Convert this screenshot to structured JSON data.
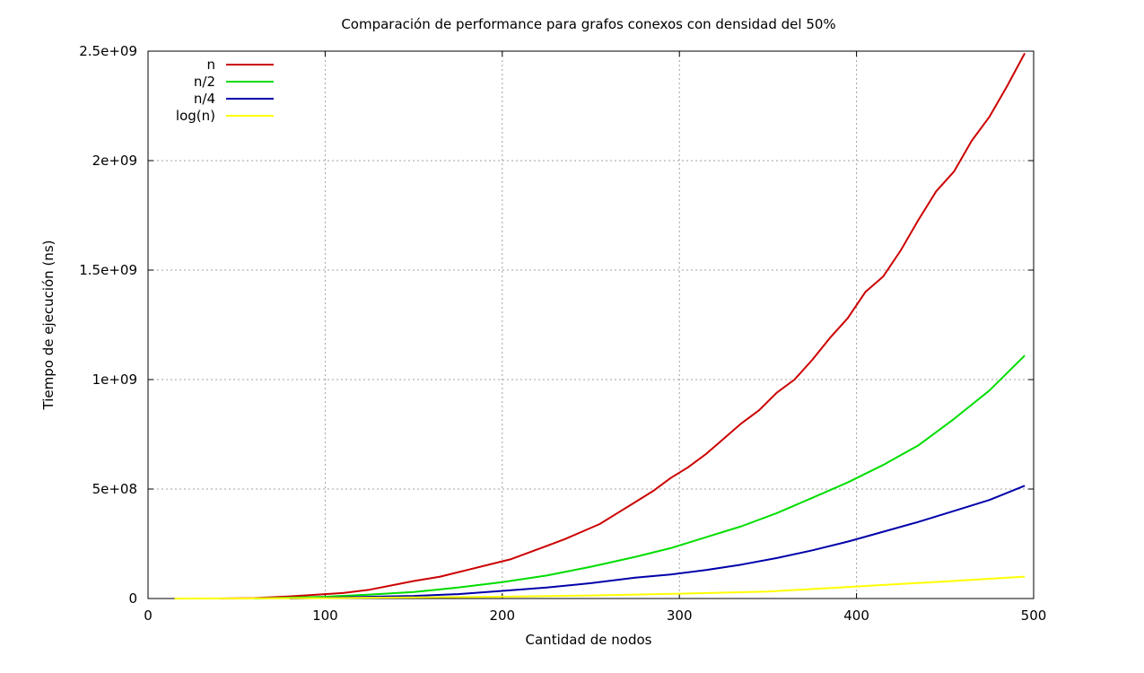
{
  "chart_data": {
    "type": "line",
    "title": "Comparación de performance para grafos conexos con densidad del 50%",
    "xlabel": "Cantidad de nodos",
    "ylabel": "Tiempo de ejecución (ns)",
    "xlim": [
      0,
      500
    ],
    "ylim": [
      0,
      2500000000
    ],
    "grid": true,
    "legend_position": "top-left",
    "x_ticks": [
      {
        "value": 0,
        "label": "0"
      },
      {
        "value": 100,
        "label": "100"
      },
      {
        "value": 200,
        "label": "200"
      },
      {
        "value": 300,
        "label": "300"
      },
      {
        "value": 400,
        "label": "400"
      },
      {
        "value": 500,
        "label": "500"
      }
    ],
    "y_ticks": [
      {
        "value": 0,
        "label": "0"
      },
      {
        "value": 500000000,
        "label": "5e+08"
      },
      {
        "value": 1000000000,
        "label": "1e+09"
      },
      {
        "value": 1500000000,
        "label": "1.5e+09"
      },
      {
        "value": 2000000000,
        "label": "2e+09"
      },
      {
        "value": 2500000000,
        "label": "2.5e+09"
      }
    ],
    "series": [
      {
        "name": "n",
        "color": "#cc0000",
        "x": [
          40,
          60,
          80,
          100,
          110,
          125,
          150,
          165,
          180,
          195,
          205,
          225,
          235,
          255,
          265,
          275,
          285,
          295,
          305,
          315,
          325,
          335,
          345,
          355,
          365,
          375,
          385,
          395,
          405,
          415,
          425,
          435,
          445,
          455,
          465,
          475,
          485,
          495
        ],
        "y": [
          0,
          2000000,
          10000000,
          20000000,
          25000000,
          40000000,
          80000000,
          100000000,
          130000000,
          160000000,
          180000000,
          240000000,
          270000000,
          340000000,
          390000000,
          440000000,
          490000000,
          550000000,
          600000000,
          660000000,
          730000000,
          800000000,
          860000000,
          940000000,
          1000000000,
          1090000000,
          1190000000,
          1280000000,
          1400000000,
          1470000000,
          1590000000,
          1730000000,
          1860000000,
          1950000000,
          2090000000,
          2200000000,
          2340000000,
          2490000000
        ]
      },
      {
        "name": "n/2",
        "color": "#00dd00",
        "x": [
          60,
          100,
          125,
          150,
          175,
          200,
          225,
          250,
          275,
          295,
          315,
          335,
          355,
          375,
          395,
          415,
          435,
          455,
          475,
          495
        ],
        "y": [
          0,
          8000000,
          18000000,
          30000000,
          50000000,
          75000000,
          105000000,
          145000000,
          190000000,
          230000000,
          280000000,
          330000000,
          390000000,
          460000000,
          530000000,
          610000000,
          700000000,
          820000000,
          950000000,
          1110000000
        ]
      },
      {
        "name": "n/4",
        "color": "#0000aa",
        "x": [
          80,
          100,
          125,
          150,
          175,
          200,
          225,
          250,
          275,
          295,
          315,
          335,
          355,
          375,
          395,
          415,
          435,
          455,
          475,
          495
        ],
        "y": [
          0,
          3000000,
          8000000,
          12000000,
          20000000,
          35000000,
          50000000,
          70000000,
          95000000,
          110000000,
          130000000,
          155000000,
          185000000,
          220000000,
          260000000,
          305000000,
          350000000,
          400000000,
          450000000,
          515000000
        ]
      },
      {
        "name": "log(n)",
        "color": "#ffff00",
        "x": [
          15,
          100,
          200,
          250,
          300,
          350,
          400,
          450,
          495
        ],
        "y": [
          0,
          2000000,
          8000000,
          14000000,
          22000000,
          32000000,
          55000000,
          78000000,
          100000000
        ]
      }
    ]
  }
}
